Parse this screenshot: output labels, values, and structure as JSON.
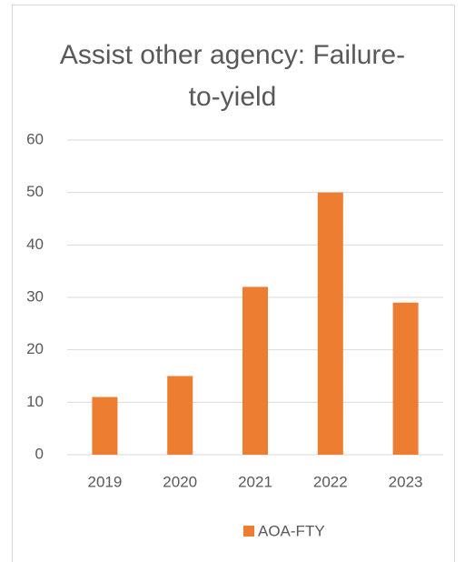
{
  "chart_data": {
    "type": "bar",
    "title": "Assist other agency: Failure-to-yield",
    "categories": [
      "2019",
      "2020",
      "2021",
      "2022",
      "2023"
    ],
    "series": [
      {
        "name": "AOA-FTY",
        "color": "#ed7d31",
        "values": [
          11,
          15,
          32,
          50,
          29
        ]
      }
    ],
    "ylim": [
      0,
      60
    ],
    "yticks": [
      0,
      10,
      20,
      30,
      40,
      50,
      60
    ],
    "grid": true,
    "legend": "bottom"
  }
}
